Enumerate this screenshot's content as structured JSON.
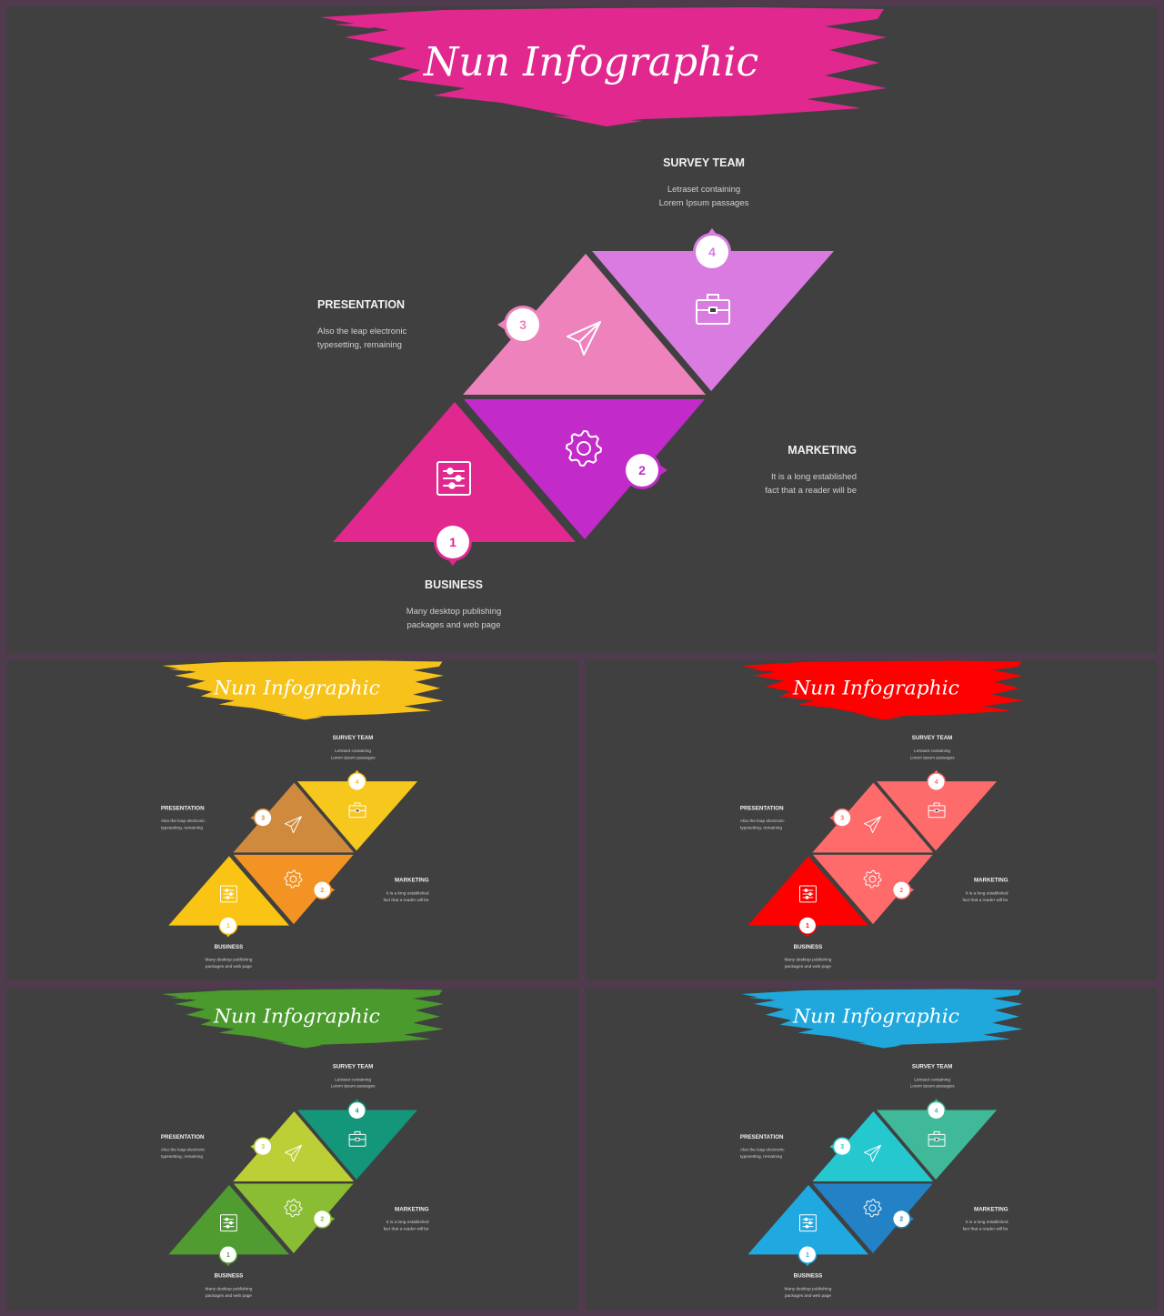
{
  "title": "Nun Infographic",
  "steps": [
    {
      "number": "1",
      "label": "BUSINESS",
      "desc": [
        "Many desktop publishing",
        "packages and web page"
      ],
      "icon": "sliders-icon"
    },
    {
      "number": "2",
      "label": "MARKETING",
      "desc": [
        "It is a long established",
        "fact that a reader will be"
      ],
      "icon": "gear-icon"
    },
    {
      "number": "3",
      "label": "PRESENTATION",
      "desc": [
        "Also the leap electronic",
        "typesetting, remaining"
      ],
      "icon": "paper-plane-icon"
    },
    {
      "number": "4",
      "label": "SURVEY TEAM",
      "desc": [
        "Letraset containing",
        "Lorem Ipsum passages"
      ],
      "icon": "briefcase-icon"
    }
  ],
  "slides": [
    {
      "theme": "magenta",
      "brush": "#e0288f",
      "colors": [
        "#e0288f",
        "#c22bc9",
        "#ee82bd",
        "#d97be0"
      ]
    },
    {
      "theme": "yellow",
      "brush": "#f7c31a",
      "colors": [
        "#f9c414",
        "#f39324",
        "#cf8a3d",
        "#f6c71c"
      ]
    },
    {
      "theme": "red",
      "brush": "#ff0000",
      "colors": [
        "#ff0000",
        "#ff6b6b",
        "#ff6b6b",
        "#fd6b6b"
      ]
    },
    {
      "theme": "green",
      "brush": "#4a9a2d",
      "colors": [
        "#509c31",
        "#8bbd34",
        "#bccf36",
        "#14967a"
      ]
    },
    {
      "theme": "blue",
      "brush": "#20a8dd",
      "colors": [
        "#20a9e0",
        "#2381c6",
        "#26c8cf",
        "#3fb999"
      ]
    }
  ]
}
